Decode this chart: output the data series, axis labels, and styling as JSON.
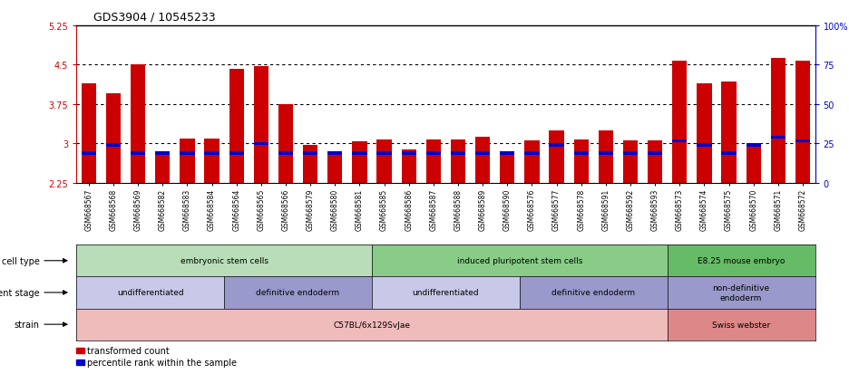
{
  "title": "GDS3904 / 10545233",
  "samples": [
    "GSM668567",
    "GSM668568",
    "GSM668569",
    "GSM668582",
    "GSM668583",
    "GSM668584",
    "GSM668564",
    "GSM668565",
    "GSM668566",
    "GSM668579",
    "GSM668580",
    "GSM668581",
    "GSM668585",
    "GSM668586",
    "GSM668587",
    "GSM668588",
    "GSM668589",
    "GSM668590",
    "GSM668576",
    "GSM668577",
    "GSM668578",
    "GSM668591",
    "GSM668592",
    "GSM668593",
    "GSM668573",
    "GSM668574",
    "GSM668575",
    "GSM668570",
    "GSM668571",
    "GSM668572"
  ],
  "bar_values": [
    4.15,
    3.95,
    4.5,
    2.85,
    3.1,
    3.1,
    4.42,
    4.48,
    3.75,
    2.97,
    2.82,
    3.04,
    3.08,
    2.88,
    3.08,
    3.08,
    3.12,
    2.82,
    3.05,
    3.25,
    3.08,
    3.25,
    3.05,
    3.05,
    4.57,
    4.15,
    4.18,
    3.0,
    4.62,
    4.57
  ],
  "percentile_values": [
    2.82,
    2.97,
    2.82,
    2.82,
    2.82,
    2.82,
    2.82,
    3.0,
    2.82,
    2.82,
    2.82,
    2.82,
    2.82,
    2.82,
    2.82,
    2.82,
    2.82,
    2.82,
    2.82,
    2.97,
    2.82,
    2.82,
    2.82,
    2.82,
    3.05,
    2.97,
    2.82,
    2.97,
    3.12,
    3.05
  ],
  "ymin": 2.25,
  "ymax": 5.25,
  "yticks": [
    2.25,
    3.0,
    3.75,
    4.5,
    5.25
  ],
  "ytick_labels": [
    "2.25",
    "3",
    "3.75",
    "4.5",
    "5.25"
  ],
  "right_yticks": [
    0,
    25,
    50,
    75,
    100
  ],
  "right_ytick_labels": [
    "0",
    "25",
    "50",
    "75",
    "100%"
  ],
  "hlines": [
    3.0,
    3.75,
    4.5
  ],
  "bar_color": "#cc0000",
  "percentile_color": "#0000cc",
  "bar_width": 0.6,
  "cell_type_groups": [
    {
      "label": "embryonic stem cells",
      "start": 0,
      "end": 11,
      "color": "#b8ddb8"
    },
    {
      "label": "induced pluripotent stem cells",
      "start": 12,
      "end": 23,
      "color": "#88cc88"
    },
    {
      "label": "E8.25 mouse embryo",
      "start": 24,
      "end": 29,
      "color": "#66bb66"
    }
  ],
  "dev_stage_groups": [
    {
      "label": "undifferentiated",
      "start": 0,
      "end": 5,
      "color": "#c8c8e8"
    },
    {
      "label": "definitive endoderm",
      "start": 6,
      "end": 11,
      "color": "#9999cc"
    },
    {
      "label": "undifferentiated",
      "start": 12,
      "end": 17,
      "color": "#c8c8e8"
    },
    {
      "label": "definitive endoderm",
      "start": 18,
      "end": 23,
      "color": "#9999cc"
    },
    {
      "label": "non-definitive\nendoderm",
      "start": 24,
      "end": 29,
      "color": "#9999cc"
    }
  ],
  "strain_groups": [
    {
      "label": "C57BL/6x129SvJae",
      "start": 0,
      "end": 23,
      "color": "#f0bbbb"
    },
    {
      "label": "Swiss webster",
      "start": 24,
      "end": 29,
      "color": "#dd8888"
    }
  ],
  "legend": [
    {
      "label": "transformed count",
      "color": "#cc0000"
    },
    {
      "label": "percentile rank within the sample",
      "color": "#0000cc"
    }
  ]
}
